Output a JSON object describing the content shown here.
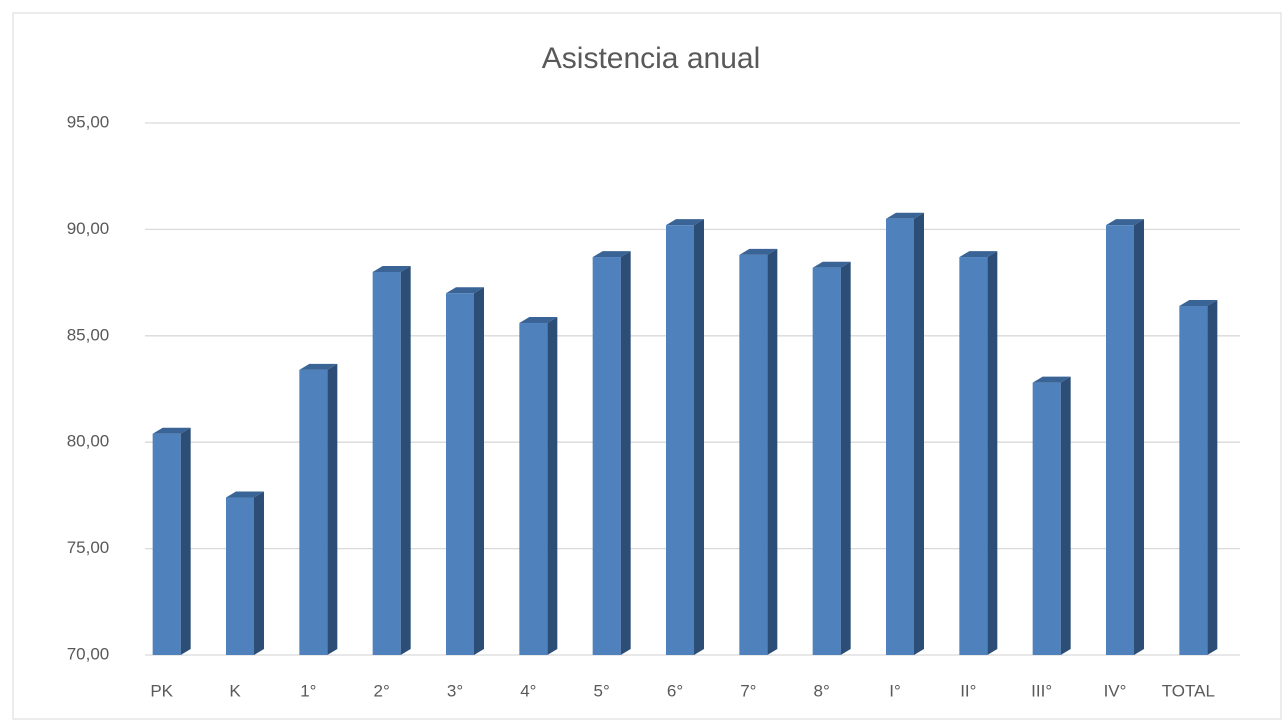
{
  "chart_data": {
    "type": "bar3d",
    "title": "Asistencia anual",
    "categories": [
      "PK",
      "K",
      "1°",
      "2°",
      "3°",
      "4°",
      "5°",
      "6°",
      "7°",
      "8°",
      "I°",
      "II°",
      "III°",
      "IV°",
      "TOTAL"
    ],
    "values": [
      80.4,
      77.4,
      83.4,
      88.0,
      87.0,
      85.6,
      88.7,
      90.2,
      88.8,
      88.2,
      90.5,
      88.7,
      82.8,
      90.2,
      86.4
    ],
    "color": "#4f81bd",
    "ylim": [
      70,
      95
    ],
    "yticks": [
      {
        "value": 70,
        "label": "70,00"
      },
      {
        "value": 75,
        "label": "75,00"
      },
      {
        "value": 80,
        "label": "80,00"
      },
      {
        "value": 85,
        "label": "85,00"
      },
      {
        "value": 90,
        "label": "90,00"
      },
      {
        "value": 95,
        "label": "95,00"
      }
    ],
    "grid": true
  }
}
